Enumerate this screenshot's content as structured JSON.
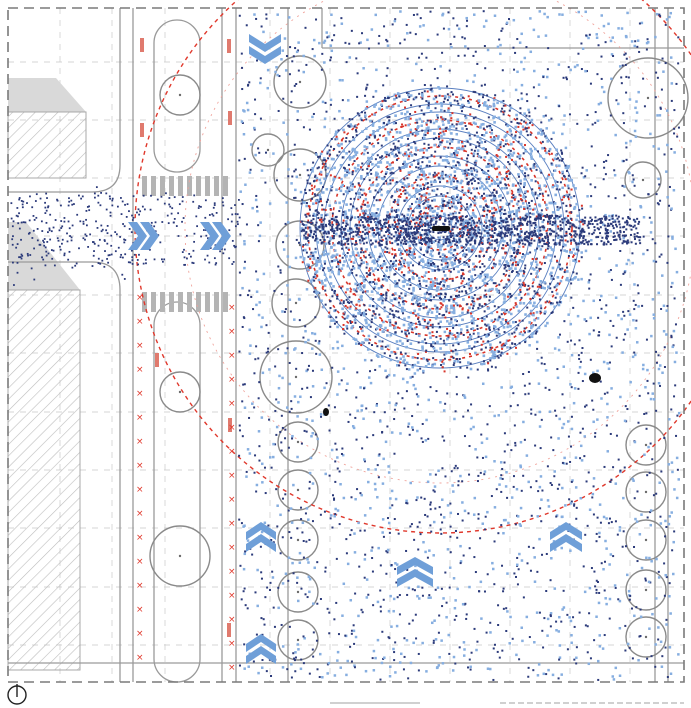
{
  "diagram": {
    "kind": "urban-plaza-site-plan",
    "colors": {
      "background": "#ffffff",
      "frame_dash": "#7a7a7a",
      "road_line": "#9a9a9a",
      "grid_dash": "#c9c9c9",
      "people_dark": "#2b3a7a",
      "people_light": "#86aee0",
      "people_red": "#d8352a",
      "radius_ring": "#e0382c",
      "arrow": "#6f9fd8",
      "building_gray": "#d6d6d6",
      "building_hatch": "#bdbdbd",
      "tree_circle": "#8a8a8a",
      "crosswalk": "#b0b0b0",
      "bollard": "#e07a6e"
    },
    "icons": [
      "north-arrow-icon",
      "flow-chevron-icon"
    ]
  }
}
